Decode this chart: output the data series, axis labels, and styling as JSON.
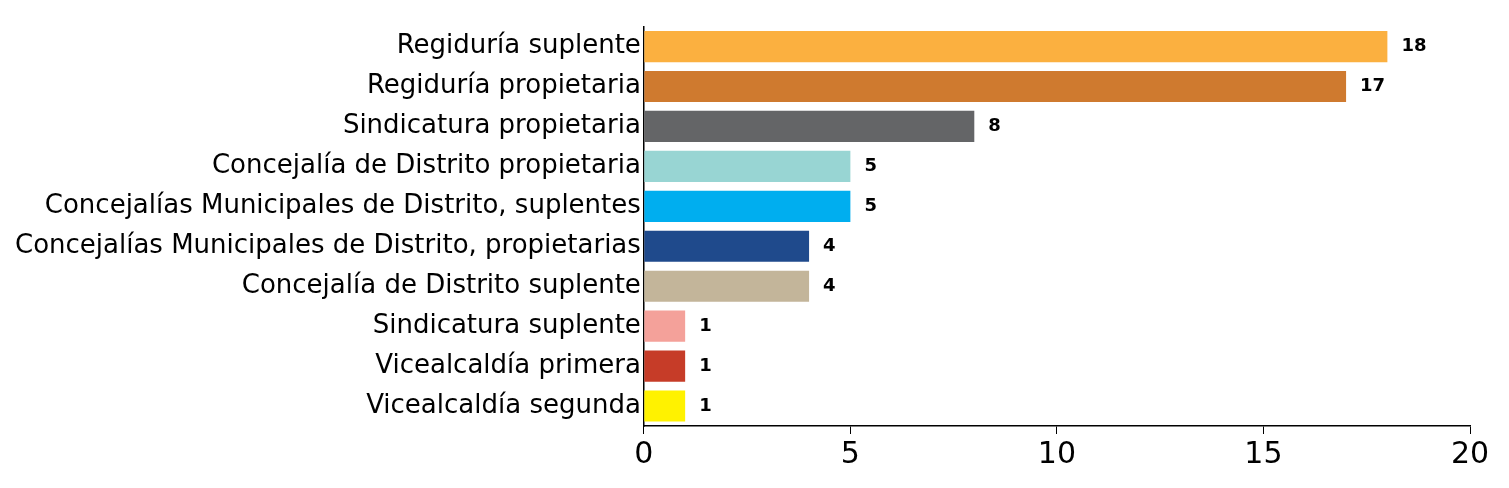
{
  "chart_data": {
    "type": "bar",
    "orientation": "horizontal",
    "categories": [
      "Regiduría suplente",
      "Regiduría propietaria",
      "Sindicatura propietaria",
      "Concejalía de Distrito propietaria",
      "Concejalías Municipales de Distrito, suplentes",
      "Concejalías Municipales de Distrito, propietarias",
      "Concejalía de Distrito suplente",
      "Sindicatura suplente",
      "Vicealcaldía primera",
      "Vicealcaldía segunda"
    ],
    "values": [
      18,
      17,
      8,
      5,
      5,
      4,
      4,
      1,
      1,
      1
    ],
    "colors": [
      "#fbb040",
      "#cf7a2f",
      "#646567",
      "#98d5d3",
      "#00aeef",
      "#1f4a8c",
      "#c3b59a",
      "#f4a19a",
      "#c63c28",
      "#fff200"
    ],
    "xlim": [
      0,
      20
    ],
    "xticks": [
      0,
      5,
      10,
      15,
      20
    ],
    "data_labels": true,
    "legend": false
  }
}
